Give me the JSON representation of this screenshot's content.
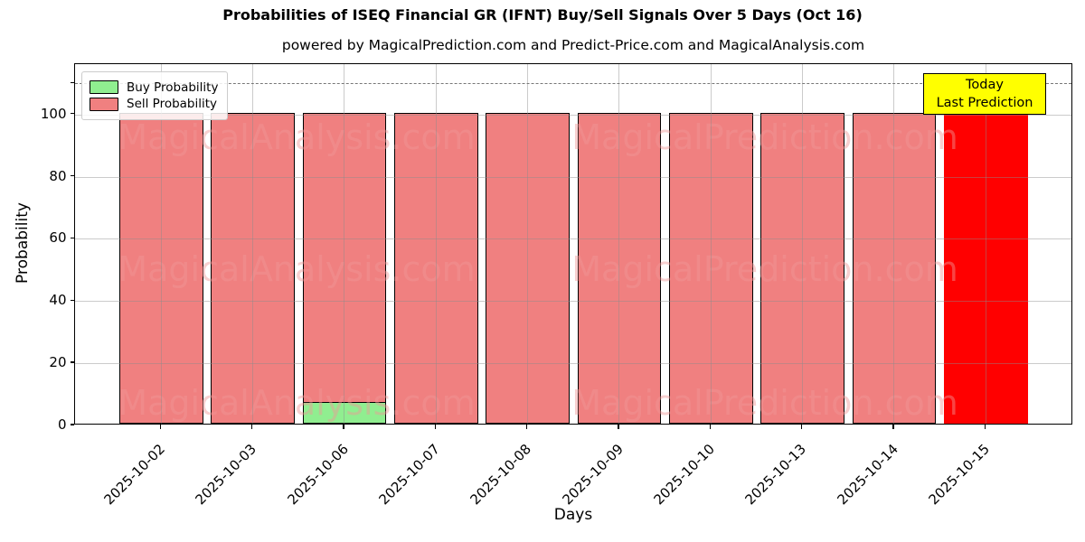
{
  "title": "Probabilities of ISEQ Financial GR (IFNT) Buy/Sell Signals Over 5 Days (Oct 16)",
  "subtitle": "powered by MagicalPrediction.com and Predict-Price.com and MagicalAnalysis.com",
  "legend": {
    "buy_label": "Buy Probability",
    "sell_label": "Sell Probability"
  },
  "annotation": {
    "line1": "Today",
    "line2": "Last Prediction",
    "bg_color": "#ffff00"
  },
  "watermarks": {
    "left_text": "MagicalAnalysis.com",
    "right_text": "MagicalPrediction.com"
  },
  "colors": {
    "buy": "#90ee90",
    "sell": "#f08080",
    "highlight": "#ff0000",
    "bar_edge": "#000000",
    "grid": "#8c8c8c",
    "dashed_line": "#777777"
  },
  "chart_data": {
    "type": "bar",
    "title": "Probabilities of ISEQ Financial GR (IFNT) Buy/Sell Signals Over 5 Days (Oct 16)",
    "xlabel": "Days",
    "ylabel": "Probability",
    "categories": [
      "2025-10-02",
      "2025-10-03",
      "2025-10-06",
      "2025-10-07",
      "2025-10-08",
      "2025-10-09",
      "2025-10-10",
      "2025-10-13",
      "2025-10-14",
      "2025-10-15"
    ],
    "series": [
      {
        "name": "Buy Probability",
        "color": "#90ee90",
        "values": [
          0,
          0,
          7,
          0,
          0,
          0,
          0,
          0,
          0,
          0
        ]
      },
      {
        "name": "Sell Probability",
        "color": "#f08080",
        "values": [
          100,
          100,
          100,
          100,
          100,
          100,
          100,
          100,
          100,
          100
        ]
      }
    ],
    "highlight": {
      "index": 9,
      "color": "#ff0000",
      "note": "Today / Last Prediction"
    },
    "yticks": [
      0,
      20,
      40,
      60,
      80,
      100
    ],
    "ylim": [
      0,
      116
    ],
    "dashed_line_y": 110,
    "grid": true,
    "legend_position": "upper left"
  }
}
